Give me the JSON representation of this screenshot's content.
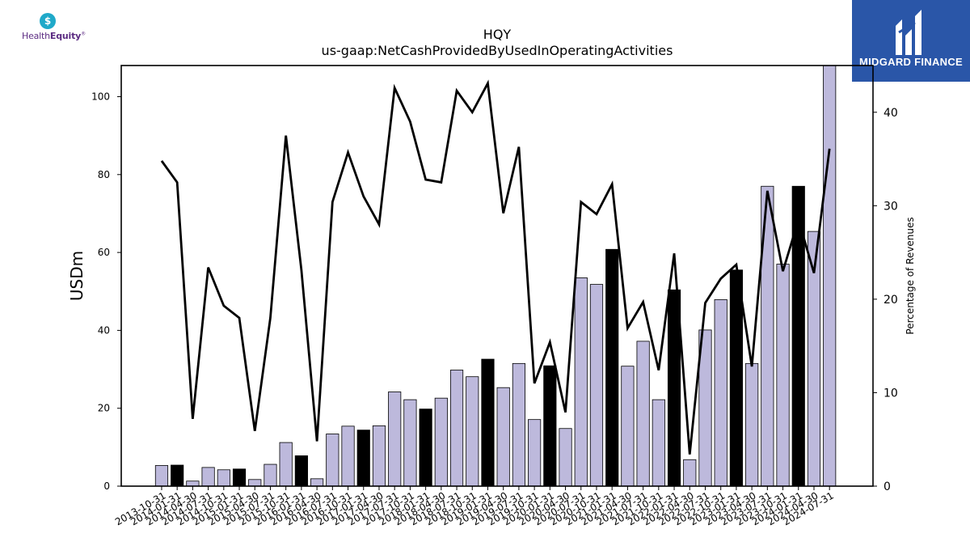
{
  "logos": {
    "left": {
      "text_regular": "Health",
      "text_bold": "Equity",
      "mark": "®",
      "icon": "dollar-shield-icon"
    },
    "right": {
      "text": "MIDGARD FINANCE",
      "icon": "midgard-m-icon",
      "bg_color": "#2a56a8"
    }
  },
  "chart_data": {
    "type": "bar",
    "title": "HQY",
    "subtitle": "us-gaap:NetCashProvidedByUsedInOperatingActivities",
    "ylabel": "USDm",
    "y2label": "Percentage of Revenues",
    "ylim": [
      0,
      108
    ],
    "y2lim": [
      0,
      45
    ],
    "yticks": [
      0,
      20,
      40,
      60,
      80,
      100
    ],
    "y2ticks": [
      0,
      10,
      20,
      30,
      40
    ],
    "categories": [
      "2013-10-31",
      "2014-01-31",
      "2014-04-30",
      "2014-07-31",
      "2014-10-31",
      "2015-01-31",
      "2015-04-30",
      "2015-07-31",
      "2015-10-31",
      "2016-01-31",
      "2016-04-30",
      "2016-07-31",
      "2016-10-31",
      "2017-01-31",
      "2017-04-30",
      "2017-07-31",
      "2017-10-31",
      "2018-01-31",
      "2018-04-30",
      "2018-07-31",
      "2018-10-31",
      "2019-01-31",
      "2019-04-30",
      "2019-07-31",
      "2019-10-31",
      "2020-01-31",
      "2020-04-30",
      "2020-07-31",
      "2020-10-31",
      "2021-01-31",
      "2021-04-30",
      "2021-07-31",
      "2021-10-31",
      "2022-01-31",
      "2022-04-30",
      "2022-07-31",
      "2022-10-31",
      "2023-01-31",
      "2023-04-30",
      "2023-07-31",
      "2023-10-31",
      "2024-01-31",
      "2024-04-30",
      "2024-07-31"
    ],
    "series": [
      {
        "type": "bar",
        "axis": "left",
        "values": [
          5.3,
          5.4,
          1.3,
          4.8,
          4.2,
          4.4,
          1.7,
          5.6,
          11.2,
          7.8,
          1.9,
          13.4,
          15.4,
          14.4,
          15.5,
          24.2,
          22.2,
          19.8,
          22.6,
          29.8,
          28.1,
          32.6,
          25.3,
          31.5,
          17.1,
          30.9,
          14.8,
          53.5,
          51.8,
          60.8,
          30.8,
          37.2,
          22.2,
          50.4,
          6.8,
          40.1,
          47.9,
          55.5,
          31.5,
          77.0,
          57.0,
          77.0,
          65.4,
          108.0
        ],
        "highlight": [
          false,
          true,
          false,
          false,
          false,
          true,
          false,
          false,
          false,
          true,
          false,
          false,
          false,
          true,
          false,
          false,
          false,
          true,
          false,
          false,
          false,
          true,
          false,
          false,
          false,
          true,
          false,
          false,
          false,
          true,
          false,
          false,
          false,
          true,
          false,
          false,
          false,
          true,
          false,
          false,
          false,
          true,
          false,
          false
        ],
        "colors": {
          "normal": "#bdb9dc",
          "highlight": "#000000"
        }
      },
      {
        "type": "line",
        "axis": "right",
        "values": [
          34.8,
          32.5,
          7.2,
          23.4,
          19.3,
          18.0,
          5.9,
          18.0,
          37.5,
          23.1,
          4.8,
          30.4,
          35.7,
          31.0,
          28.0,
          42.6,
          39.0,
          32.8,
          32.5,
          42.3,
          40.0,
          43.1,
          29.2,
          36.3,
          11.0,
          15.4,
          7.9,
          30.4,
          29.1,
          32.3,
          16.9,
          19.7,
          12.4,
          24.9,
          3.4,
          19.6,
          22.2,
          23.7,
          12.8,
          31.6,
          23.0,
          28.5,
          22.8,
          36.1
        ],
        "color": "#000000"
      }
    ],
    "grid": false,
    "legend": "none"
  }
}
